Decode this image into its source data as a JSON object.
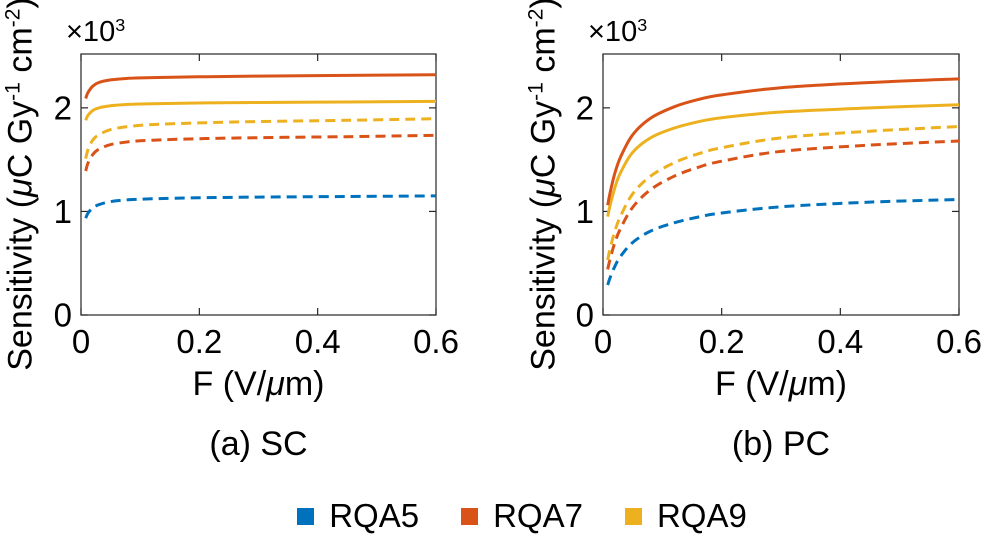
{
  "figure": {
    "background": "#ffffff",
    "axis_color": "#262626",
    "legend": {
      "items": [
        {
          "label": "RQA5",
          "color": "#0072BD"
        },
        {
          "label": "RQA7",
          "color": "#D95319"
        },
        {
          "label": "RQA9",
          "color": "#EDB120"
        }
      ]
    }
  },
  "chart_data": [
    {
      "type": "line",
      "caption": "(a) SC",
      "xlabel_parts": [
        {
          "text": "F (V/",
          "style": "normal"
        },
        {
          "text": "μ",
          "style": "italic"
        },
        {
          "text": "m)",
          "style": "normal"
        }
      ],
      "ylabel_parts": [
        {
          "text": "Sensitivity (",
          "style": "normal"
        },
        {
          "text": "μ",
          "style": "italic"
        },
        {
          "text": "C Gy",
          "style": "normal"
        },
        {
          "text": "-1",
          "style": "sup"
        },
        {
          "text": " cm",
          "style": "normal"
        },
        {
          "text": "-2",
          "style": "sup"
        },
        {
          "text": ")",
          "style": "normal"
        }
      ],
      "y_exponent_parts": [
        {
          "text": "×10",
          "style": "normal"
        },
        {
          "text": "3",
          "style": "sup"
        }
      ],
      "xlim": [
        0,
        0.6
      ],
      "ylim": [
        0,
        2520
      ],
      "xticks": {
        "values": [
          0,
          0.2,
          0.4,
          0.6
        ],
        "labels": [
          "0",
          "0.2",
          "0.4",
          "0.6"
        ]
      },
      "yticks": {
        "values": [
          0,
          1000,
          2000
        ],
        "labels": [
          "0",
          "1",
          "2"
        ]
      },
      "grid": false,
      "y_units": "μC Gy-1 cm-2",
      "series": [
        {
          "name": "RQA5",
          "line": "dashed",
          "color": "#0072BD",
          "points": [
            [
              0.008,
              935
            ],
            [
              0.012,
              985
            ],
            [
              0.02,
              1035
            ],
            [
              0.03,
              1065
            ],
            [
              0.05,
              1095
            ],
            [
              0.08,
              1112
            ],
            [
              0.12,
              1122
            ],
            [
              0.2,
              1132
            ],
            [
              0.3,
              1138
            ],
            [
              0.45,
              1144
            ],
            [
              0.6,
              1150
            ]
          ]
        },
        {
          "name": "RQA7",
          "line": "dashed",
          "color": "#D95319",
          "points": [
            [
              0.008,
              1390
            ],
            [
              0.012,
              1470
            ],
            [
              0.02,
              1550
            ],
            [
              0.03,
              1600
            ],
            [
              0.05,
              1645
            ],
            [
              0.08,
              1672
            ],
            [
              0.12,
              1688
            ],
            [
              0.2,
              1702
            ],
            [
              0.3,
              1712
            ],
            [
              0.45,
              1722
            ],
            [
              0.6,
              1735
            ]
          ]
        },
        {
          "name": "RQA9",
          "line": "dashed",
          "color": "#EDB120",
          "points": [
            [
              0.008,
              1510
            ],
            [
              0.012,
              1600
            ],
            [
              0.02,
              1690
            ],
            [
              0.03,
              1740
            ],
            [
              0.05,
              1790
            ],
            [
              0.08,
              1820
            ],
            [
              0.12,
              1838
            ],
            [
              0.2,
              1855
            ],
            [
              0.3,
              1868
            ],
            [
              0.45,
              1880
            ],
            [
              0.6,
              1895
            ]
          ]
        },
        {
          "name": "RQA9",
          "line": "solid",
          "color": "#EDB120",
          "points": [
            [
              0.008,
              1880
            ],
            [
              0.012,
              1930
            ],
            [
              0.02,
              1975
            ],
            [
              0.03,
              2000
            ],
            [
              0.05,
              2020
            ],
            [
              0.08,
              2033
            ],
            [
              0.12,
              2040
            ],
            [
              0.2,
              2047
            ],
            [
              0.3,
              2052
            ],
            [
              0.45,
              2057
            ],
            [
              0.6,
              2062
            ]
          ]
        },
        {
          "name": "RQA7",
          "line": "solid",
          "color": "#D95319",
          "points": [
            [
              0.008,
              2090
            ],
            [
              0.012,
              2150
            ],
            [
              0.02,
              2210
            ],
            [
              0.03,
              2245
            ],
            [
              0.05,
              2270
            ],
            [
              0.08,
              2285
            ],
            [
              0.12,
              2292
            ],
            [
              0.2,
              2300
            ],
            [
              0.3,
              2307
            ],
            [
              0.45,
              2313
            ],
            [
              0.6,
              2320
            ]
          ]
        }
      ]
    },
    {
      "type": "line",
      "caption": "(b) PC",
      "xlabel_parts": [
        {
          "text": "F (V/",
          "style": "normal"
        },
        {
          "text": "μ",
          "style": "italic"
        },
        {
          "text": "m)",
          "style": "normal"
        }
      ],
      "ylabel_parts": [
        {
          "text": "Sensitivity (",
          "style": "normal"
        },
        {
          "text": "μ",
          "style": "italic"
        },
        {
          "text": "C Gy",
          "style": "normal"
        },
        {
          "text": "-1",
          "style": "sup"
        },
        {
          "text": " cm",
          "style": "normal"
        },
        {
          "text": "-2",
          "style": "sup"
        },
        {
          "text": ")",
          "style": "normal"
        }
      ],
      "y_exponent_parts": [
        {
          "text": "×10",
          "style": "normal"
        },
        {
          "text": "3",
          "style": "sup"
        }
      ],
      "xlim": [
        0,
        0.6
      ],
      "ylim": [
        0,
        2520
      ],
      "xticks": {
        "values": [
          0,
          0.2,
          0.4,
          0.6
        ],
        "labels": [
          "0",
          "0.2",
          "0.4",
          "0.6"
        ]
      },
      "yticks": {
        "values": [
          0,
          1000,
          2000
        ],
        "labels": [
          "0",
          "1",
          "2"
        ]
      },
      "grid": false,
      "y_units": "μC Gy-1 cm-2",
      "series": [
        {
          "name": "RQA5",
          "line": "dashed",
          "color": "#0072BD",
          "points": [
            [
              0.008,
              290
            ],
            [
              0.012,
              360
            ],
            [
              0.02,
              470
            ],
            [
              0.03,
              570
            ],
            [
              0.05,
              700
            ],
            [
              0.08,
              810
            ],
            [
              0.12,
              890
            ],
            [
              0.16,
              945
            ],
            [
              0.2,
              985
            ],
            [
              0.3,
              1045
            ],
            [
              0.45,
              1090
            ],
            [
              0.6,
              1115
            ]
          ]
        },
        {
          "name": "RQA7",
          "line": "dashed",
          "color": "#D95319",
          "points": [
            [
              0.008,
              440
            ],
            [
              0.012,
              540
            ],
            [
              0.02,
              700
            ],
            [
              0.03,
              840
            ],
            [
              0.05,
              1040
            ],
            [
              0.08,
              1210
            ],
            [
              0.12,
              1340
            ],
            [
              0.16,
              1425
            ],
            [
              0.2,
              1485
            ],
            [
              0.3,
              1580
            ],
            [
              0.45,
              1640
            ],
            [
              0.6,
              1680
            ]
          ]
        },
        {
          "name": "RQA9",
          "line": "dashed",
          "color": "#EDB120",
          "points": [
            [
              0.008,
              530
            ],
            [
              0.012,
              640
            ],
            [
              0.02,
              810
            ],
            [
              0.03,
              960
            ],
            [
              0.05,
              1170
            ],
            [
              0.08,
              1340
            ],
            [
              0.12,
              1470
            ],
            [
              0.16,
              1555
            ],
            [
              0.2,
              1615
            ],
            [
              0.3,
              1710
            ],
            [
              0.45,
              1775
            ],
            [
              0.6,
              1820
            ]
          ]
        },
        {
          "name": "RQA9",
          "line": "solid",
          "color": "#EDB120",
          "points": [
            [
              0.008,
              950
            ],
            [
              0.012,
              1060
            ],
            [
              0.02,
              1230
            ],
            [
              0.03,
              1380
            ],
            [
              0.05,
              1570
            ],
            [
              0.08,
              1710
            ],
            [
              0.12,
              1805
            ],
            [
              0.16,
              1865
            ],
            [
              0.2,
              1905
            ],
            [
              0.3,
              1960
            ],
            [
              0.45,
              2000
            ],
            [
              0.6,
              2030
            ]
          ]
        },
        {
          "name": "RQA7",
          "line": "solid",
          "color": "#D95319",
          "points": [
            [
              0.008,
              1060
            ],
            [
              0.012,
              1180
            ],
            [
              0.02,
              1370
            ],
            [
              0.03,
              1530
            ],
            [
              0.05,
              1740
            ],
            [
              0.08,
              1900
            ],
            [
              0.12,
              2010
            ],
            [
              0.16,
              2080
            ],
            [
              0.2,
              2125
            ],
            [
              0.3,
              2195
            ],
            [
              0.45,
              2245
            ],
            [
              0.6,
              2280
            ]
          ]
        }
      ]
    }
  ]
}
